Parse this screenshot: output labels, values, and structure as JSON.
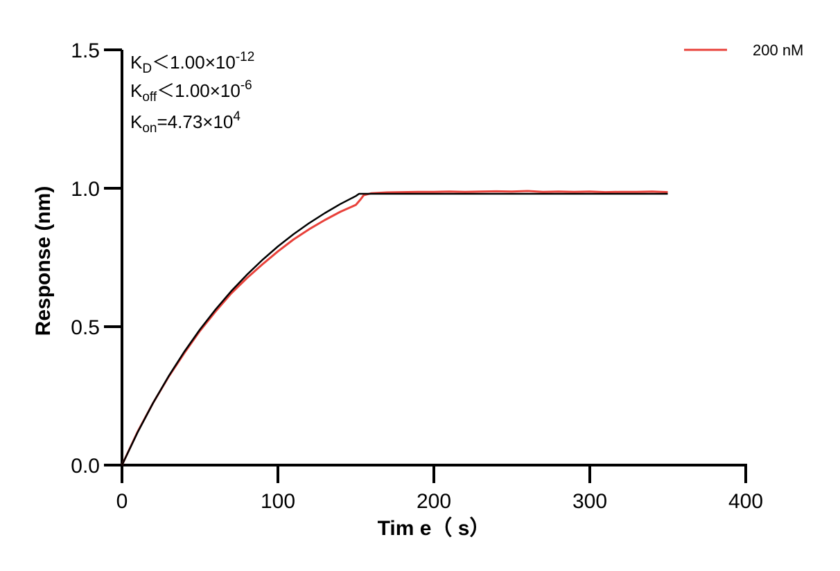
{
  "chart_data": {
    "type": "line",
    "xlabel": "Tim e（ s）",
    "ylabel": "Response (nm)",
    "xlim": [
      0,
      400
    ],
    "ylim": [
      0,
      1.5
    ],
    "x_ticks": [
      "0",
      "100",
      "200",
      "300",
      "400"
    ],
    "y_ticks": [
      "0.0",
      "0.5",
      "1.0",
      "1.5"
    ],
    "grid": false,
    "legend_position": "top-right",
    "annotations": {
      "kd": {
        "base": "K",
        "sub": "D",
        "op": "＜",
        "mantissa": "1.00×10",
        "exp": "-12"
      },
      "koff": {
        "base": "K",
        "sub": "off",
        "op": "＜",
        "mantissa": "1.00×10",
        "exp": "-6"
      },
      "kon": {
        "base": "K",
        "sub": "on",
        "op": "=",
        "mantissa": "4.73×10",
        "exp": "4"
      }
    },
    "series": [
      {
        "name": "200 nM",
        "color": "#e8413a",
        "points": [
          [
            0,
            0
          ],
          [
            10,
            0.12
          ],
          [
            20,
            0.225
          ],
          [
            30,
            0.32
          ],
          [
            40,
            0.405
          ],
          [
            50,
            0.485
          ],
          [
            60,
            0.555
          ],
          [
            70,
            0.62
          ],
          [
            80,
            0.675
          ],
          [
            90,
            0.725
          ],
          [
            100,
            0.772
          ],
          [
            110,
            0.815
          ],
          [
            120,
            0.852
          ],
          [
            130,
            0.885
          ],
          [
            140,
            0.915
          ],
          [
            150,
            0.94
          ],
          [
            153,
            0.96
          ],
          [
            155,
            0.975
          ],
          [
            160,
            0.982
          ],
          [
            170,
            0.985
          ],
          [
            180,
            0.986
          ],
          [
            190,
            0.987
          ],
          [
            200,
            0.987
          ],
          [
            210,
            0.988
          ],
          [
            220,
            0.987
          ],
          [
            230,
            0.988
          ],
          [
            240,
            0.989
          ],
          [
            250,
            0.988
          ],
          [
            260,
            0.99
          ],
          [
            270,
            0.987
          ],
          [
            280,
            0.988
          ],
          [
            290,
            0.987
          ],
          [
            300,
            0.988
          ],
          [
            310,
            0.986
          ],
          [
            320,
            0.987
          ],
          [
            330,
            0.987
          ],
          [
            340,
            0.988
          ],
          [
            350,
            0.986
          ]
        ]
      },
      {
        "color": "#000000",
        "points": [
          [
            0,
            0
          ],
          [
            10,
            0.118
          ],
          [
            20,
            0.225
          ],
          [
            30,
            0.322
          ],
          [
            40,
            0.41
          ],
          [
            50,
            0.49
          ],
          [
            60,
            0.562
          ],
          [
            70,
            0.628
          ],
          [
            80,
            0.687
          ],
          [
            90,
            0.741
          ],
          [
            100,
            0.79
          ],
          [
            110,
            0.834
          ],
          [
            120,
            0.874
          ],
          [
            130,
            0.91
          ],
          [
            140,
            0.943
          ],
          [
            150,
            0.972
          ],
          [
            152,
            0.98
          ],
          [
            160,
            0.98
          ],
          [
            200,
            0.98
          ],
          [
            250,
            0.98
          ],
          [
            300,
            0.98
          ],
          [
            350,
            0.98
          ]
        ]
      }
    ]
  }
}
